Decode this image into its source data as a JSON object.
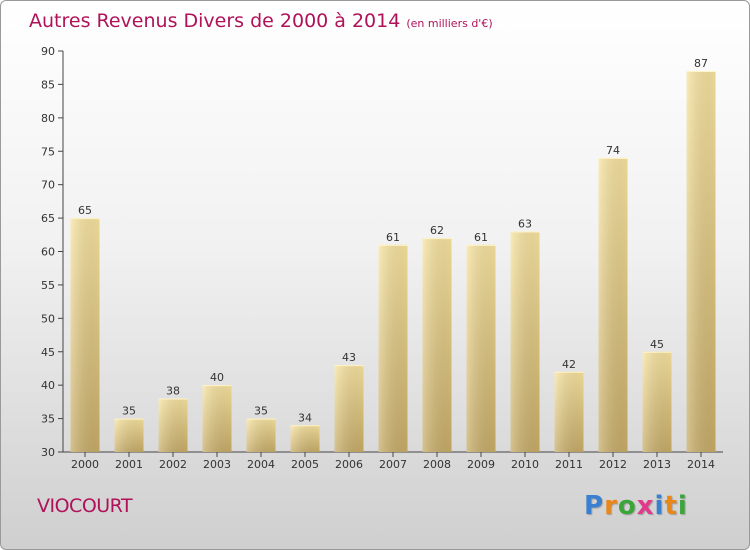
{
  "title": "Autres Revenus Divers de 2000 à 2014",
  "unit_note": "(en milliers d'€)",
  "commune": "VIOCOURT",
  "logo": {
    "text": "Proxiti",
    "letters": [
      {
        "ch": "P",
        "color": "#3a7fd0"
      },
      {
        "ch": "r",
        "color": "#e8871a"
      },
      {
        "ch": "o",
        "color": "#3aa63a"
      },
      {
        "ch": "x",
        "color": "#e23a8a"
      },
      {
        "ch": "i",
        "color": "#3a7fd0"
      },
      {
        "ch": "t",
        "color": "#e8871a"
      },
      {
        "ch": "i",
        "color": "#3aa63a"
      }
    ]
  },
  "colors": {
    "accent": "#b0125a",
    "bar_top": "#f8e4a0",
    "bar_bottom": "#c8ad68"
  },
  "chart_data": {
    "type": "bar",
    "categories": [
      "2000",
      "2001",
      "2002",
      "2003",
      "2004",
      "2005",
      "2006",
      "2007",
      "2008",
      "2009",
      "2010",
      "2011",
      "2012",
      "2013",
      "2014"
    ],
    "values": [
      65,
      35,
      38,
      40,
      35,
      34,
      43,
      61,
      62,
      61,
      63,
      42,
      74,
      45,
      87
    ],
    "ylim": [
      30,
      90
    ],
    "yticks": [
      30,
      35,
      40,
      45,
      50,
      55,
      60,
      65,
      70,
      75,
      80,
      85,
      90
    ],
    "grid": false
  }
}
